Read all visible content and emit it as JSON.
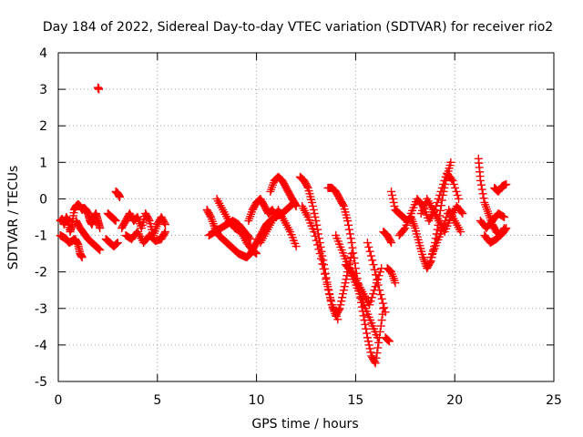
{
  "chart_data": {
    "type": "scatter",
    "title": "Day 184 of 2022, Sidereal Day-to-day VTEC variation (SDTVAR) for receiver rio2",
    "xlabel": "GPS time / hours",
    "ylabel": "SDTVAR / TECUs",
    "xlim": [
      0,
      25
    ],
    "ylim": [
      -5,
      4
    ],
    "xticks": [
      0,
      5,
      10,
      15,
      20,
      25
    ],
    "yticks": [
      -5,
      -4,
      -3,
      -2,
      -1,
      0,
      1,
      2,
      3,
      4
    ],
    "grid": true,
    "marker": "+",
    "series": [
      {
        "name": "SDTVAR",
        "color": "#ff0000",
        "segments": [
          {
            "x": [
              0.1,
              0.2,
              0.3,
              0.4,
              0.5,
              0.6,
              0.7,
              0.8,
              0.9,
              1.0,
              1.1,
              1.2,
              1.3,
              1.4,
              1.5,
              1.6,
              1.7,
              1.8,
              1.9,
              2.0,
              2.1
            ],
            "y": [
              -0.6,
              -0.55,
              -0.7,
              -0.5,
              -0.6,
              -0.9,
              -0.7,
              -0.3,
              -0.2,
              -0.15,
              -0.2,
              -0.3,
              -0.25,
              -0.3,
              -0.4,
              -0.6,
              -0.7,
              -0.5,
              -0.4,
              -0.6,
              -0.8
            ]
          },
          {
            "x": [
              0.1,
              0.25,
              0.4,
              0.55,
              0.7,
              0.85,
              1.0,
              1.1,
              1.2
            ],
            "y": [
              -1.0,
              -1.05,
              -1.1,
              -1.2,
              -1.15,
              -1.1,
              -1.25,
              -1.5,
              -1.6
            ]
          },
          {
            "x": [
              0.9,
              1.1,
              1.3,
              1.5,
              1.7,
              1.9,
              2.1
            ],
            "y": [
              -0.6,
              -0.8,
              -0.95,
              -1.1,
              -1.2,
              -1.3,
              -1.4
            ]
          },
          {
            "x": [
              2.0,
              2.05
            ],
            "y": [
              3.05,
              3.0
            ]
          },
          {
            "x": [
              2.4,
              2.6,
              2.8,
              3.0
            ],
            "y": [
              -1.1,
              -1.2,
              -1.3,
              -1.2
            ]
          },
          {
            "x": [
              2.5,
              2.7,
              2.9
            ],
            "y": [
              -0.4,
              -0.5,
              -0.6
            ]
          },
          {
            "x": [
              2.9,
              3.0,
              3.1
            ],
            "y": [
              0.2,
              0.15,
              0.05
            ]
          },
          {
            "x": [
              3.2,
              3.4,
              3.6,
              3.8,
              4.0,
              4.2,
              4.4,
              4.6,
              4.8,
              5.0,
              5.2,
              5.4
            ],
            "y": [
              -0.8,
              -0.6,
              -0.4,
              -0.6,
              -0.5,
              -0.8,
              -0.4,
              -0.6,
              -1.0,
              -0.7,
              -0.5,
              -0.7
            ]
          },
          {
            "x": [
              3.4,
              3.7,
              4.0,
              4.3,
              4.6,
              4.9,
              5.2,
              5.4
            ],
            "y": [
              -1.0,
              -1.1,
              -0.9,
              -1.2,
              -1.0,
              -1.15,
              -1.1,
              -0.9
            ]
          },
          {
            "x": [
              7.5,
              7.7,
              7.9,
              8.1,
              8.3,
              8.5,
              8.7,
              8.9,
              9.1,
              9.3,
              9.5,
              9.7,
              9.9,
              10.1,
              10.3,
              10.5,
              10.7,
              10.9,
              11.1,
              11.3,
              11.5,
              11.7,
              11.9
            ],
            "y": [
              -0.3,
              -0.5,
              -0.8,
              -1.0,
              -1.1,
              -1.2,
              -1.3,
              -1.4,
              -1.5,
              -1.55,
              -1.6,
              -1.5,
              -1.3,
              -1.1,
              -0.9,
              -0.7,
              -0.6,
              -0.5,
              -0.45,
              -0.4,
              -0.3,
              -0.2,
              -0.1
            ]
          },
          {
            "x": [
              7.6,
              7.9,
              8.2,
              8.5,
              8.8,
              9.1,
              9.4,
              9.7
            ],
            "y": [
              -1.0,
              -0.9,
              -0.8,
              -0.7,
              -0.6,
              -0.7,
              -0.9,
              -1.1
            ]
          },
          {
            "x": [
              8.0,
              8.3,
              8.6,
              8.9,
              9.2,
              9.5,
              9.8,
              10.0
            ],
            "y": [
              0.0,
              -0.3,
              -0.6,
              -0.8,
              -0.9,
              -1.2,
              -1.4,
              -1.5
            ]
          },
          {
            "x": [
              9.6,
              9.8,
              10.0,
              10.2,
              10.4,
              10.6,
              10.8,
              11.0
            ],
            "y": [
              -0.6,
              -0.3,
              -0.1,
              0.0,
              -0.2,
              -0.4,
              -0.3,
              -0.5
            ]
          },
          {
            "x": [
              10.2,
              10.5,
              10.8,
              11.1,
              11.4,
              11.7,
              12.0
            ],
            "y": [
              -1.2,
              -0.9,
              -0.6,
              -0.3,
              -0.6,
              -0.9,
              -1.3
            ]
          },
          {
            "x": [
              10.7,
              10.9,
              11.1,
              11.3,
              11.5,
              11.7,
              11.9,
              12.0
            ],
            "y": [
              0.2,
              0.5,
              0.6,
              0.5,
              0.3,
              0.1,
              -0.1,
              -0.2
            ]
          },
          {
            "x": [
              12.2,
              12.4,
              12.6,
              12.8,
              13.0,
              13.2,
              13.4,
              13.6,
              13.8,
              14.0,
              14.2,
              14.4,
              14.6,
              14.8
            ],
            "y": [
              0.6,
              0.5,
              0.3,
              -0.1,
              -0.6,
              -1.2,
              -1.8,
              -2.4,
              -2.9,
              -3.2,
              -3.0,
              -2.5,
              -2.0,
              -1.5
            ]
          },
          {
            "x": [
              12.3,
              12.6,
              12.9,
              13.2,
              13.5,
              13.8,
              14.1
            ],
            "y": [
              -0.2,
              -0.5,
              -0.9,
              -1.5,
              -2.2,
              -2.9,
              -3.3
            ]
          },
          {
            "x": [
              13.6,
              13.8,
              14.0,
              14.2,
              14.4,
              14.6,
              14.8,
              15.0,
              15.2,
              15.4,
              15.6,
              15.8,
              16.0,
              16.2,
              16.4
            ],
            "y": [
              0.3,
              0.3,
              0.2,
              0.0,
              -0.2,
              -0.6,
              -1.2,
              -1.9,
              -2.6,
              -3.2,
              -3.8,
              -4.3,
              -4.5,
              -3.8,
              -3.0
            ]
          },
          {
            "x": [
              14.0,
              14.3,
              14.6,
              14.9,
              15.2,
              15.5,
              15.8,
              16.1
            ],
            "y": [
              -1.0,
              -1.4,
              -1.8,
              -2.2,
              -2.6,
              -3.0,
              -3.4,
              -3.8
            ]
          },
          {
            "x": [
              14.5,
              14.8,
              15.1,
              15.4,
              15.7,
              16.0,
              16.3
            ],
            "y": [
              -1.8,
              -2.0,
              -2.3,
              -2.6,
              -2.9,
              -2.4,
              -1.9
            ]
          },
          {
            "x": [
              15.6,
              15.9,
              16.2,
              16.5
            ],
            "y": [
              -1.2,
              -1.8,
              -2.5,
              -3.1
            ]
          },
          {
            "x": [
              16.4,
              16.6,
              16.8
            ],
            "y": [
              -0.9,
              -1.0,
              -1.2
            ]
          },
          {
            "x": [
              16.6,
              16.8,
              17.0
            ],
            "y": [
              -1.9,
              -2.0,
              -2.3
            ]
          },
          {
            "x": [
              16.5,
              16.7
            ],
            "y": [
              -3.8,
              -3.9
            ]
          },
          {
            "x": [
              16.8,
              17.0,
              17.2,
              17.4,
              17.6,
              17.8,
              18.0,
              18.2,
              18.4,
              18.6,
              18.8,
              19.0,
              19.2,
              19.4,
              19.6,
              19.8
            ],
            "y": [
              0.2,
              -0.3,
              -0.4,
              -0.5,
              -0.6,
              -0.5,
              -0.8,
              -1.2,
              -1.6,
              -1.9,
              -1.7,
              -1.2,
              -0.6,
              0.1,
              0.6,
              1.0
            ]
          },
          {
            "x": [
              17.2,
              17.5,
              17.8,
              18.1,
              18.4,
              18.7,
              19.0,
              19.3,
              19.6,
              19.9,
              20.2
            ],
            "y": [
              -1.0,
              -0.8,
              -0.4,
              0.0,
              -0.2,
              -0.6,
              -0.3,
              0.2,
              0.7,
              0.5,
              0.0
            ]
          },
          {
            "x": [
              18.3,
              18.6,
              18.9,
              19.2,
              19.5,
              19.8,
              20.1,
              20.4
            ],
            "y": [
              -0.4,
              0.0,
              -0.3,
              -0.6,
              -0.9,
              -0.5,
              -0.2,
              -0.4
            ]
          },
          {
            "x": [
              18.8,
              19.1,
              19.4,
              19.7,
              20.0,
              20.3
            ],
            "y": [
              -1.6,
              -1.2,
              -0.8,
              -0.3,
              -0.6,
              -0.9
            ]
          },
          {
            "x": [
              21.2,
              21.3,
              21.5,
              21.7,
              21.9,
              22.1,
              22.3,
              22.5
            ],
            "y": [
              1.1,
              0.5,
              -0.1,
              -0.4,
              -0.7,
              -0.9,
              -1.0,
              -0.8
            ]
          },
          {
            "x": [
              21.3,
              21.6,
              21.9,
              22.2,
              22.5
            ],
            "y": [
              -0.6,
              -0.8,
              -0.6,
              -0.4,
              -0.5
            ]
          },
          {
            "x": [
              22.0,
              22.2,
              22.4,
              22.6
            ],
            "y": [
              0.3,
              0.2,
              0.35,
              0.4
            ]
          },
          {
            "x": [
              21.5,
              21.8,
              22.1,
              22.4,
              22.6
            ],
            "y": [
              -1.0,
              -1.2,
              -1.1,
              -0.95,
              -0.8
            ]
          }
        ]
      }
    ]
  }
}
